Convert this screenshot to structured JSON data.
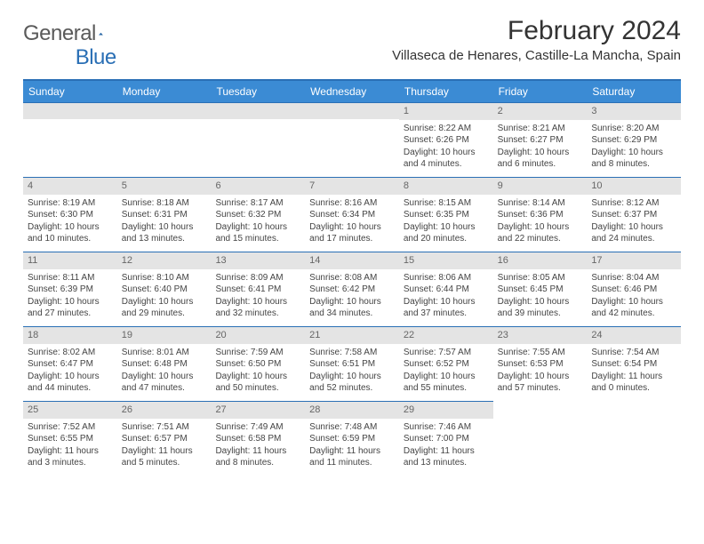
{
  "logo": {
    "text_general": "General",
    "text_blue": "Blue",
    "triangle_color": "#2a6fb5"
  },
  "title": "February 2024",
  "location": "Villaseca de Henares, Castille-La Mancha, Spain",
  "colors": {
    "header_bar": "#3b8bd4",
    "header_border": "#2a6fb5",
    "daynum_bg": "#e4e4e4",
    "text": "#333333"
  },
  "weekdays": [
    "Sunday",
    "Monday",
    "Tuesday",
    "Wednesday",
    "Thursday",
    "Friday",
    "Saturday"
  ],
  "weeks": [
    [
      null,
      null,
      null,
      null,
      {
        "n": "1",
        "sunrise": "8:22 AM",
        "sunset": "6:26 PM",
        "daylight": "10 hours and 4 minutes."
      },
      {
        "n": "2",
        "sunrise": "8:21 AM",
        "sunset": "6:27 PM",
        "daylight": "10 hours and 6 minutes."
      },
      {
        "n": "3",
        "sunrise": "8:20 AM",
        "sunset": "6:29 PM",
        "daylight": "10 hours and 8 minutes."
      }
    ],
    [
      {
        "n": "4",
        "sunrise": "8:19 AM",
        "sunset": "6:30 PM",
        "daylight": "10 hours and 10 minutes."
      },
      {
        "n": "5",
        "sunrise": "8:18 AM",
        "sunset": "6:31 PM",
        "daylight": "10 hours and 13 minutes."
      },
      {
        "n": "6",
        "sunrise": "8:17 AM",
        "sunset": "6:32 PM",
        "daylight": "10 hours and 15 minutes."
      },
      {
        "n": "7",
        "sunrise": "8:16 AM",
        "sunset": "6:34 PM",
        "daylight": "10 hours and 17 minutes."
      },
      {
        "n": "8",
        "sunrise": "8:15 AM",
        "sunset": "6:35 PM",
        "daylight": "10 hours and 20 minutes."
      },
      {
        "n": "9",
        "sunrise": "8:14 AM",
        "sunset": "6:36 PM",
        "daylight": "10 hours and 22 minutes."
      },
      {
        "n": "10",
        "sunrise": "8:12 AM",
        "sunset": "6:37 PM",
        "daylight": "10 hours and 24 minutes."
      }
    ],
    [
      {
        "n": "11",
        "sunrise": "8:11 AM",
        "sunset": "6:39 PM",
        "daylight": "10 hours and 27 minutes."
      },
      {
        "n": "12",
        "sunrise": "8:10 AM",
        "sunset": "6:40 PM",
        "daylight": "10 hours and 29 minutes."
      },
      {
        "n": "13",
        "sunrise": "8:09 AM",
        "sunset": "6:41 PM",
        "daylight": "10 hours and 32 minutes."
      },
      {
        "n": "14",
        "sunrise": "8:08 AM",
        "sunset": "6:42 PM",
        "daylight": "10 hours and 34 minutes."
      },
      {
        "n": "15",
        "sunrise": "8:06 AM",
        "sunset": "6:44 PM",
        "daylight": "10 hours and 37 minutes."
      },
      {
        "n": "16",
        "sunrise": "8:05 AM",
        "sunset": "6:45 PM",
        "daylight": "10 hours and 39 minutes."
      },
      {
        "n": "17",
        "sunrise": "8:04 AM",
        "sunset": "6:46 PM",
        "daylight": "10 hours and 42 minutes."
      }
    ],
    [
      {
        "n": "18",
        "sunrise": "8:02 AM",
        "sunset": "6:47 PM",
        "daylight": "10 hours and 44 minutes."
      },
      {
        "n": "19",
        "sunrise": "8:01 AM",
        "sunset": "6:48 PM",
        "daylight": "10 hours and 47 minutes."
      },
      {
        "n": "20",
        "sunrise": "7:59 AM",
        "sunset": "6:50 PM",
        "daylight": "10 hours and 50 minutes."
      },
      {
        "n": "21",
        "sunrise": "7:58 AM",
        "sunset": "6:51 PM",
        "daylight": "10 hours and 52 minutes."
      },
      {
        "n": "22",
        "sunrise": "7:57 AM",
        "sunset": "6:52 PM",
        "daylight": "10 hours and 55 minutes."
      },
      {
        "n": "23",
        "sunrise": "7:55 AM",
        "sunset": "6:53 PM",
        "daylight": "10 hours and 57 minutes."
      },
      {
        "n": "24",
        "sunrise": "7:54 AM",
        "sunset": "6:54 PM",
        "daylight": "11 hours and 0 minutes."
      }
    ],
    [
      {
        "n": "25",
        "sunrise": "7:52 AM",
        "sunset": "6:55 PM",
        "daylight": "11 hours and 3 minutes."
      },
      {
        "n": "26",
        "sunrise": "7:51 AM",
        "sunset": "6:57 PM",
        "daylight": "11 hours and 5 minutes."
      },
      {
        "n": "27",
        "sunrise": "7:49 AM",
        "sunset": "6:58 PM",
        "daylight": "11 hours and 8 minutes."
      },
      {
        "n": "28",
        "sunrise": "7:48 AM",
        "sunset": "6:59 PM",
        "daylight": "11 hours and 11 minutes."
      },
      {
        "n": "29",
        "sunrise": "7:46 AM",
        "sunset": "7:00 PM",
        "daylight": "11 hours and 13 minutes."
      },
      null,
      null
    ]
  ]
}
